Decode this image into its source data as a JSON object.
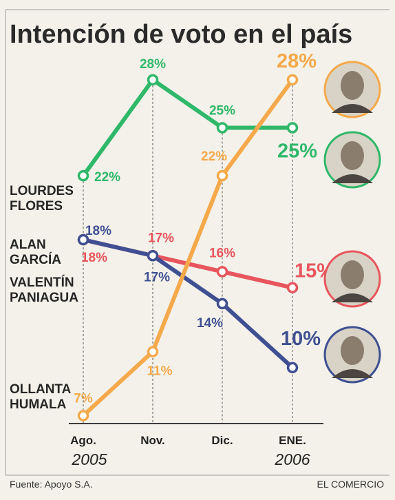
{
  "chart_data": {
    "type": "line",
    "title": "Intención de voto en el país",
    "categories": [
      "Ago.",
      "Nov.",
      "Dic.",
      "ENE."
    ],
    "year_labels": [
      "2005",
      "2006"
    ],
    "ylim": [
      0,
      30
    ],
    "grid": false,
    "series": [
      {
        "name": "LOURDES FLORES",
        "name_lines": [
          "LOURDES",
          "FLORES"
        ],
        "color": "#2fb86a",
        "values": [
          22,
          28,
          25,
          25
        ],
        "labels": [
          "22%",
          "28%",
          "25%",
          "25%"
        ]
      },
      {
        "name": "ALAN GARCÍA",
        "name_lines": [
          "ALAN",
          "GARCÍA"
        ],
        "color": "#e8555d",
        "values": [
          18,
          17,
          16,
          15
        ],
        "labels": [
          "18%",
          "17%",
          "16%",
          "15%"
        ]
      },
      {
        "name": "VALENTÍN PANIAGUA",
        "name_lines": [
          "VALENTÍN",
          "PANIAGUA"
        ],
        "color": "#3f4f92",
        "values": [
          18,
          17,
          14,
          10
        ],
        "labels": [
          "18%",
          "17%",
          "14%",
          "10%"
        ]
      },
      {
        "name": "OLLANTA HUMALA",
        "name_lines": [
          "OLLANTA",
          "HUMALA"
        ],
        "color": "#f5a94a",
        "values": [
          7,
          11,
          22,
          28
        ],
        "labels": [
          "7%",
          "11%",
          "22%",
          "28%"
        ]
      }
    ]
  },
  "footer": {
    "source": "Fuente: Apoyo S.A.",
    "publisher": "EL COMERCIO"
  },
  "portraits": [
    {
      "icon": "portrait-humala-icon",
      "color": "#f5a94a"
    },
    {
      "icon": "portrait-flores-icon",
      "color": "#2fb86a"
    },
    {
      "icon": "portrait-garcia-icon",
      "color": "#e8555d"
    },
    {
      "icon": "portrait-paniagua-icon",
      "color": "#3f4f92"
    }
  ]
}
